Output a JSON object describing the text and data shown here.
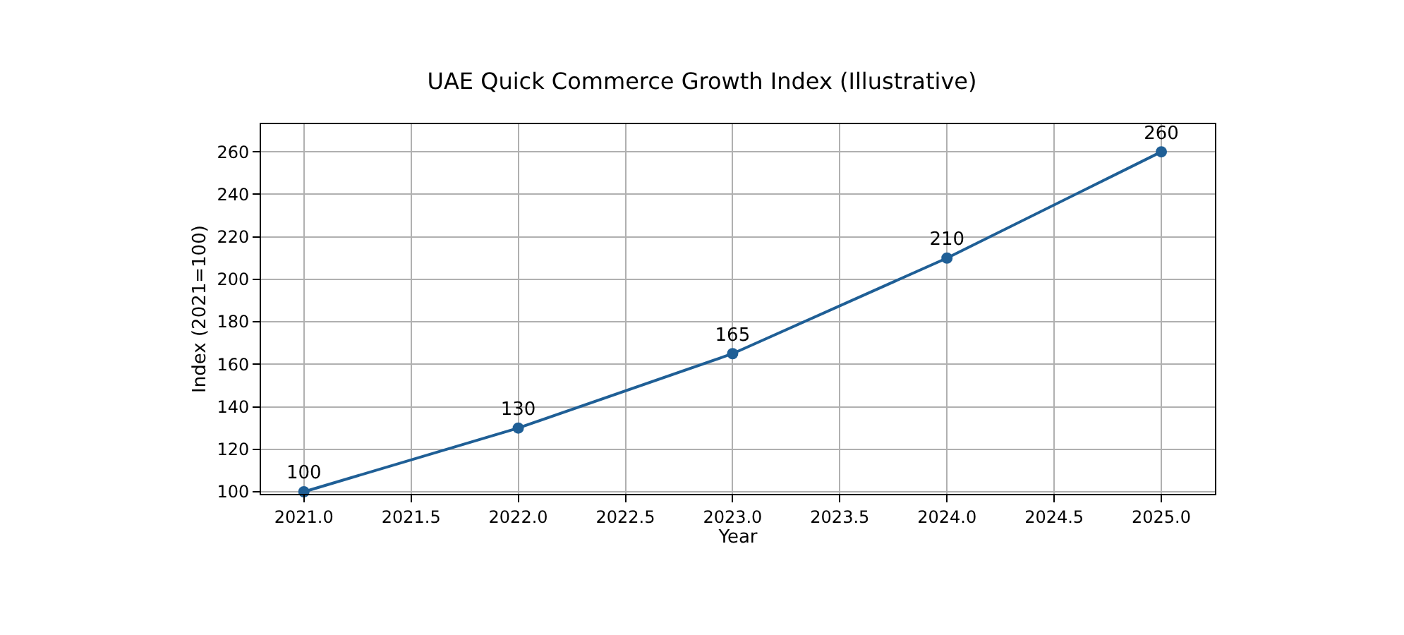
{
  "chart_data": {
    "type": "line",
    "title": "UAE Quick Commerce Growth Index (Illustrative)",
    "xlabel": "Year",
    "ylabel": "Index (2021=100)",
    "x": [
      2021,
      2022,
      2023,
      2024,
      2025
    ],
    "series": [
      {
        "color": "#1f5f96",
        "values": [
          100,
          130,
          165,
          210,
          260
        ]
      }
    ],
    "data_labels": true,
    "marker": "circle",
    "line_style": "solid",
    "grid": true,
    "xlim": [
      2020.8,
      2025.25
    ],
    "xticks": [
      {
        "value": 2021,
        "label": "2021.0"
      },
      {
        "value": 2021.5,
        "label": "2021.5"
      },
      {
        "value": 2022,
        "label": "2022.0"
      },
      {
        "value": 2022.5,
        "label": "2022.5"
      },
      {
        "value": 2023,
        "label": "2023.0"
      },
      {
        "value": 2023.5,
        "label": "2023.5"
      },
      {
        "value": 2024,
        "label": "2024.0"
      },
      {
        "value": 2024.5,
        "label": "2024.5"
      },
      {
        "value": 2025,
        "label": "2025.0"
      }
    ],
    "ylim": [
      99,
      273
    ],
    "yticks": [
      100,
      120,
      140,
      160,
      180,
      200,
      220,
      240,
      260
    ]
  }
}
